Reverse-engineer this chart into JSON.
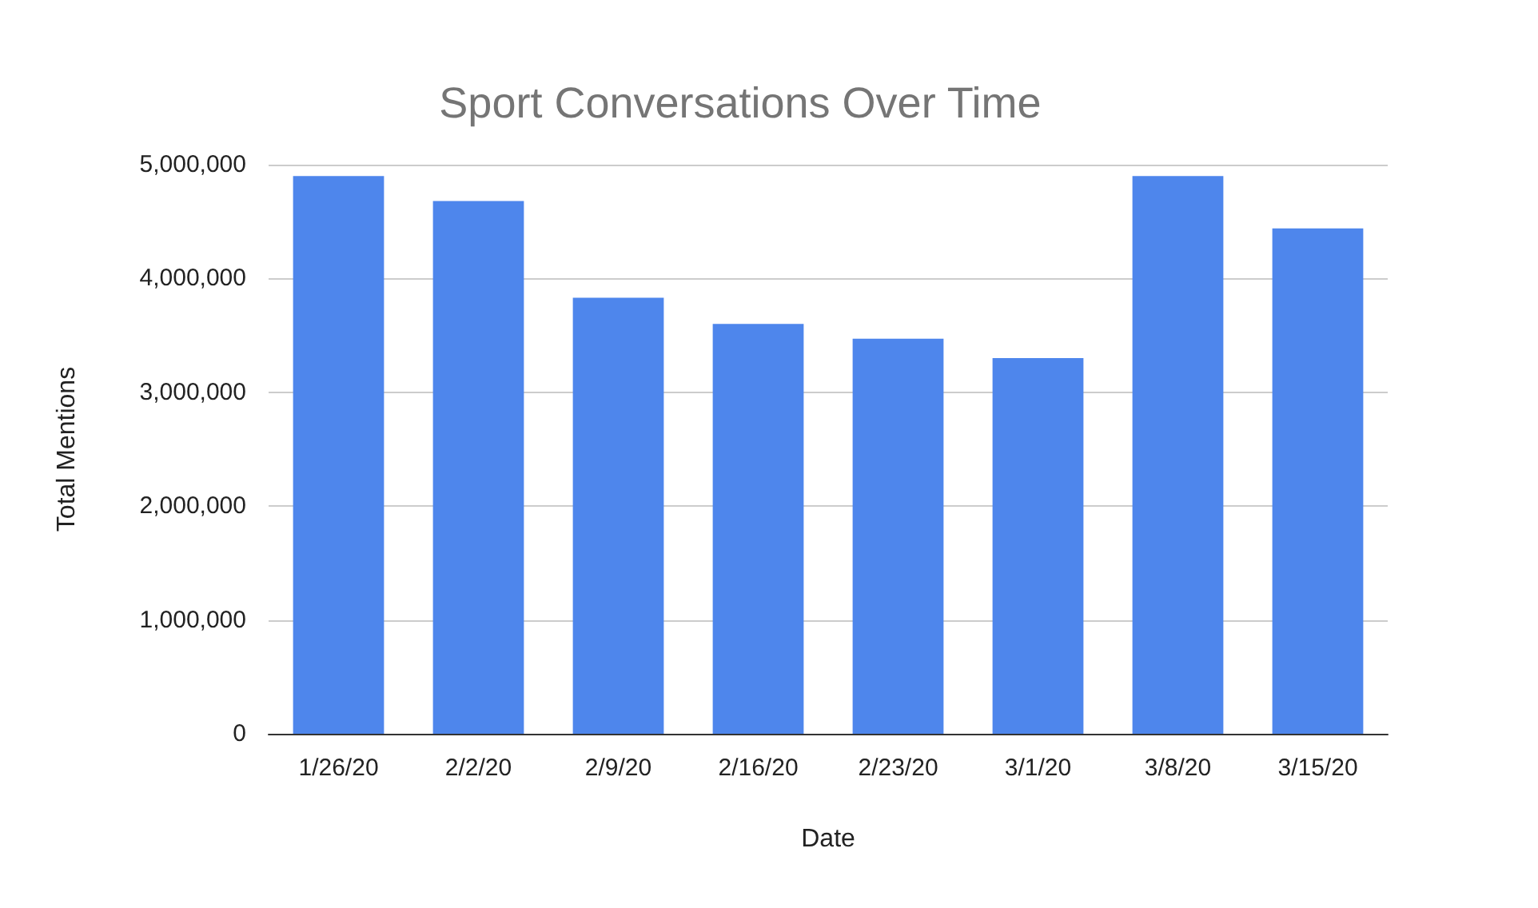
{
  "chart_data": {
    "type": "bar",
    "title": "Sport Conversations Over Time",
    "xlabel": "Date",
    "ylabel": "Total Mentions",
    "categories": [
      "1/26/20",
      "2/2/20",
      "2/9/20",
      "2/16/20",
      "2/23/20",
      "3/1/20",
      "3/8/20",
      "3/15/20"
    ],
    "values": [
      4900000,
      4680000,
      3830000,
      3600000,
      3470000,
      3300000,
      4900000,
      4440000
    ],
    "color": "#4e86ec",
    "ylim": [
      0,
      5000000
    ],
    "yticks": [
      0,
      {
        "value": 1000000,
        "label": "1,000,000"
      },
      {
        "value": 2000000,
        "label": "2,000,000"
      },
      {
        "value": 3000000,
        "label": "3,000,000"
      },
      {
        "value": 4000000,
        "label": "4,000,000"
      },
      {
        "value": 5000000,
        "label": "5,000,000"
      }
    ],
    "grid": "y"
  }
}
